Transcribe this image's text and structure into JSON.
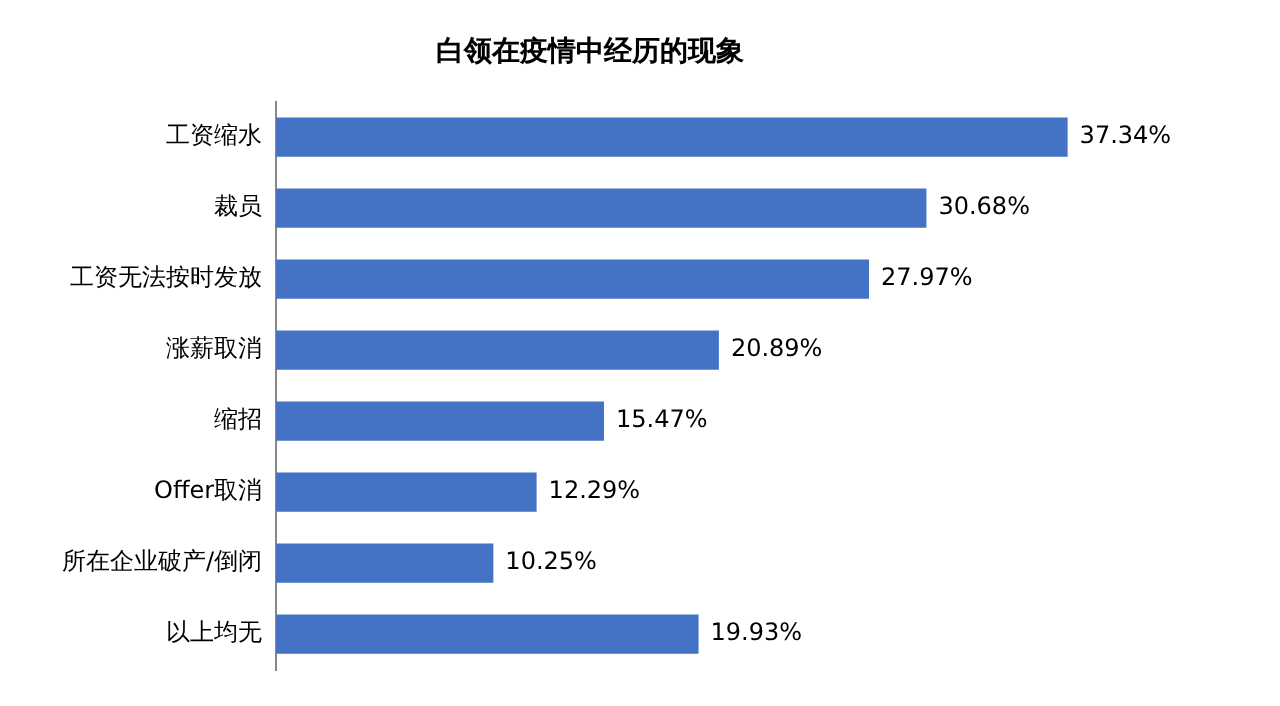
{
  "chart_data": {
    "type": "bar",
    "orientation": "horizontal",
    "title": "白领在疫情中经历的现象",
    "categories": [
      "工资缩水",
      "裁员",
      "工资无法按时发放",
      "涨薪取消",
      "缩招",
      "Offer取消",
      "所在企业破产/倒闭",
      "以上均无"
    ],
    "values": [
      37.34,
      30.68,
      27.97,
      20.89,
      15.47,
      12.29,
      10.25,
      19.93
    ],
    "value_labels": [
      "37.34%",
      "30.68%",
      "27.97%",
      "20.89%",
      "15.47%",
      "12.29%",
      "10.25%",
      "19.93%"
    ],
    "color": "#4472c4",
    "grid": false,
    "legend": false
  }
}
